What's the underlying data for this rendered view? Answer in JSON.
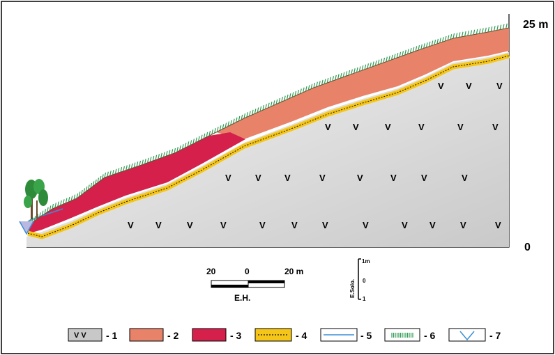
{
  "top_label": "25 m",
  "bottom_label": "0",
  "horizontal_scale": {
    "left": "20",
    "center": "0",
    "right": "20 m",
    "caption": "E.H."
  },
  "vertical_scale": {
    "caption": "E.Solo.",
    "top": "1m",
    "middle": "0",
    "bottom": "1"
  },
  "bedrock_symbol": "V",
  "legend": [
    {
      "id": "1",
      "label": "- 1",
      "swatch_text": "V V",
      "color": "#c8c8c8"
    },
    {
      "id": "2",
      "label": "- 2",
      "color": "#e8836a"
    },
    {
      "id": "3",
      "label": "- 3",
      "color": "#d6204c"
    },
    {
      "id": "4",
      "label": "- 4",
      "color": "#f5c518"
    },
    {
      "id": "5",
      "label": "- 5",
      "color": "#3a8fd6"
    },
    {
      "id": "6",
      "label": "- 6",
      "color": "#2e9a52"
    },
    {
      "id": "7",
      "label": "- 7",
      "color": "#3a8fd6"
    }
  ]
}
